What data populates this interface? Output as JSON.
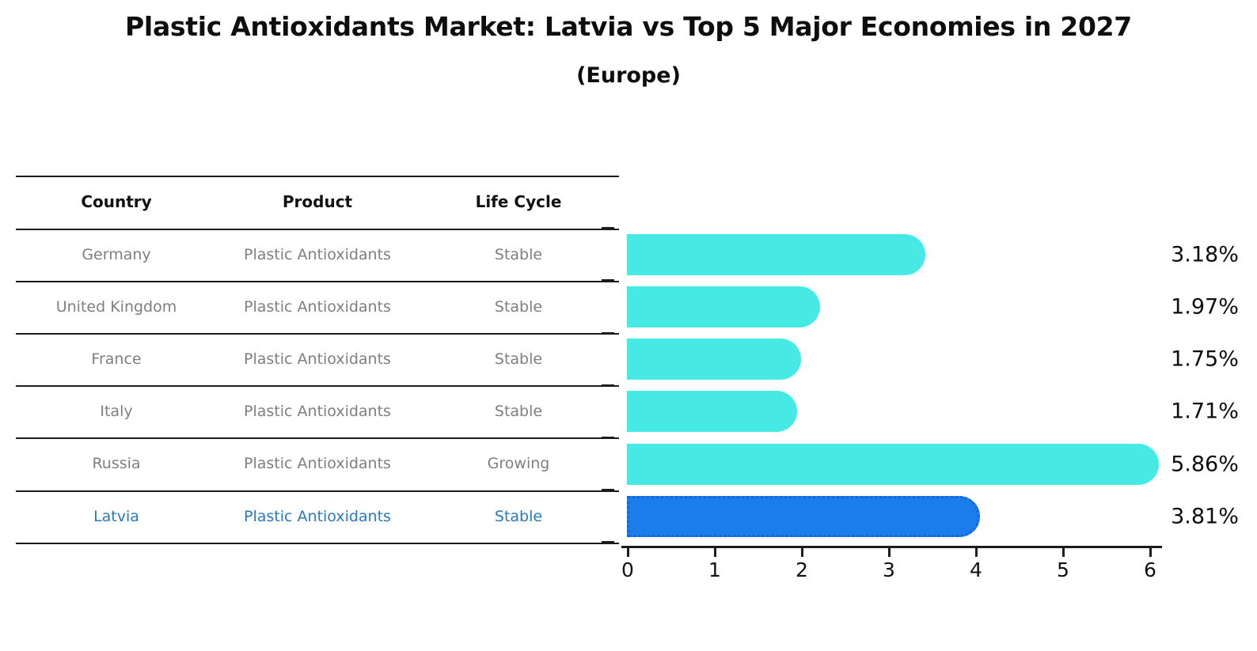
{
  "header": {
    "title": "Plastic Antioxidants Market: Latvia vs Top 5 Major Economies in 2027",
    "subtitle": "(Europe)"
  },
  "table": {
    "columns": [
      "Country",
      "Product",
      "Life Cycle"
    ],
    "rows": [
      {
        "country": "Germany",
        "product": "Plastic Antioxidants",
        "life_cycle": "Stable",
        "highlight": false
      },
      {
        "country": "United Kingdom",
        "product": "Plastic Antioxidants",
        "life_cycle": "Stable",
        "highlight": false
      },
      {
        "country": "France",
        "product": "Plastic Antioxidants",
        "life_cycle": "Stable",
        "highlight": false
      },
      {
        "country": "Italy",
        "product": "Plastic Antioxidants",
        "life_cycle": "Stable",
        "highlight": false
      },
      {
        "country": "Russia",
        "product": "Plastic Antioxidants",
        "life_cycle": "Growing",
        "highlight": false
      },
      {
        "country": "Latvia",
        "product": "Plastic Antioxidants",
        "life_cycle": "Stable",
        "highlight": true
      }
    ]
  },
  "chart_data": {
    "type": "bar",
    "orientation": "horizontal",
    "title": "Plastic Antioxidants Market: Latvia vs Top 5 Major Economies in 2027",
    "subtitle": "(Europe)",
    "categories": [
      "Germany",
      "United Kingdom",
      "France",
      "Italy",
      "Russia",
      "Latvia"
    ],
    "values": [
      3.18,
      1.97,
      1.75,
      1.71,
      5.86,
      3.81
    ],
    "value_labels": [
      "3.18%",
      "1.97%",
      "1.75%",
      "1.71%",
      "5.86%",
      "3.81%"
    ],
    "highlight_index": 5,
    "xlim": [
      0,
      6
    ],
    "xticks": [
      "0",
      "1",
      "2",
      "3",
      "4",
      "5",
      "6"
    ],
    "grid": false,
    "legend": "none",
    "colors": {
      "bar": "#47e9e4",
      "highlight_bar": "#1b7cec",
      "highlight_edge": "#1565d2",
      "text_dark": "#0e0e0e",
      "text_gray": "#7f7f7f",
      "text_highlight": "#2a79bd",
      "line": "#1c1c1c"
    }
  }
}
